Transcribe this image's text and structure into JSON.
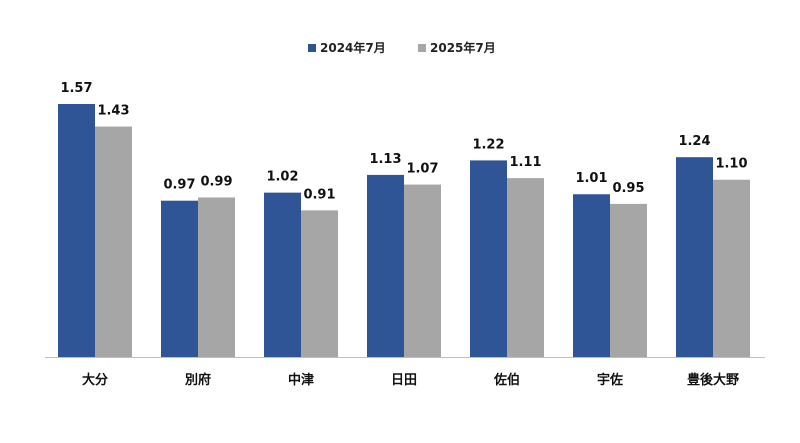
{
  "chart_data": {
    "type": "bar",
    "title": "",
    "xlabel": "",
    "ylabel": "",
    "categories": [
      "大分",
      "別府",
      "中津",
      "日田",
      "佐伯",
      "宇佐",
      "豊後大野"
    ],
    "series": [
      {
        "name": "2024年7月",
        "color": "#2f5597",
        "values": [
          1.57,
          0.97,
          1.02,
          1.13,
          1.22,
          1.01,
          1.24
        ],
        "labels": [
          "1.57",
          "0.97",
          "1.02",
          "1.13",
          "1.22",
          "1.01",
          "1.24"
        ]
      },
      {
        "name": "2025年7月",
        "color": "#a6a6a6",
        "values": [
          1.43,
          0.99,
          0.91,
          1.07,
          1.11,
          0.95,
          1.1
        ],
        "labels": [
          "1.43",
          "0.99",
          "0.91",
          "1.07",
          "1.11",
          "0.95",
          "1.10"
        ]
      }
    ],
    "ylim": [
      0,
      1.57
    ],
    "grid": false,
    "legend_position": "top-center",
    "axis_color": "#bfbfbf"
  }
}
